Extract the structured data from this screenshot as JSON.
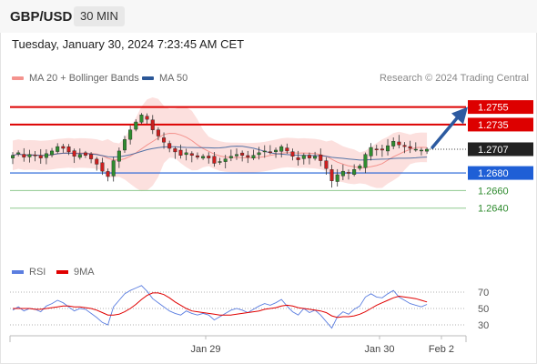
{
  "header": {
    "symbol": "GBP/USD",
    "interval": "30 MIN",
    "datetime": "Tuesday, January 30, 2024 7:23:45 AM CET"
  },
  "legend": {
    "ma20": {
      "label": "MA 20 + Bollinger Bands",
      "color": "#f4938e"
    },
    "ma50": {
      "label": "MA 50",
      "color": "#2b5797"
    },
    "copyright": "Research © 2024 Trading Central"
  },
  "rsi_legend": {
    "rsi": {
      "label": "RSI",
      "color": "#5b7ee0"
    },
    "ma9": {
      "label": "9MA",
      "color": "#e00000"
    }
  },
  "chart_data": [
    {
      "type": "candlestick",
      "price_range": [
        1.2618,
        1.2767
      ],
      "x_ticks": [
        "Jan 29",
        "Jan 30",
        "Feb 2"
      ],
      "current_price": {
        "label": "1.2707",
        "value": 1.2707
      },
      "levels": [
        {
          "label": "1.2755",
          "value": 1.2755,
          "kind": "resistance",
          "color": "#dd0000"
        },
        {
          "label": "1.2735",
          "value": 1.2735,
          "kind": "resistance",
          "color": "#dd0000"
        },
        {
          "label": "1.2680",
          "value": 1.268,
          "kind": "pivot",
          "color": "#1f5fd6"
        },
        {
          "label": "1.2660",
          "value": 1.266,
          "kind": "support",
          "color": "#8fca8f"
        },
        {
          "label": "1.2640",
          "value": 1.264,
          "kind": "support",
          "color": "#8fca8f"
        }
      ],
      "close_series": [
        1.27,
        1.2703,
        1.2698,
        1.2701,
        1.27,
        1.2697,
        1.2702,
        1.2705,
        1.271,
        1.2708,
        1.2704,
        1.2699,
        1.2701,
        1.27,
        1.2696,
        1.269,
        1.2682,
        1.2676,
        1.2694,
        1.2705,
        1.2718,
        1.2729,
        1.2738,
        1.2746,
        1.2741,
        1.2729,
        1.2722,
        1.2715,
        1.2708,
        1.2704,
        1.27,
        1.2703,
        1.27,
        1.2698,
        1.2699,
        1.2697,
        1.2691,
        1.2693,
        1.2696,
        1.2699,
        1.2701,
        1.27,
        1.2698,
        1.27,
        1.2703,
        1.2705,
        1.2704,
        1.2706,
        1.271,
        1.2705,
        1.2699,
        1.2695,
        1.27,
        1.2697,
        1.2699,
        1.2694,
        1.2685,
        1.2671,
        1.2678,
        1.2682,
        1.268,
        1.2684,
        1.2688,
        1.2701,
        1.2709,
        1.2707,
        1.2706,
        1.2711,
        1.2716,
        1.2712,
        1.271,
        1.2708,
        1.2707,
        1.2706,
        1.2707
      ]
    },
    {
      "type": "line",
      "title": "RSI",
      "y_ticks": [
        70,
        50,
        30
      ],
      "series": [
        {
          "name": "RSI",
          "values": [
            48,
            52,
            47,
            50,
            49,
            46,
            53,
            56,
            60,
            57,
            52,
            47,
            50,
            49,
            44,
            39,
            33,
            30,
            52,
            60,
            68,
            72,
            75,
            78,
            71,
            62,
            57,
            52,
            47,
            44,
            42,
            47,
            44,
            42,
            44,
            42,
            36,
            40,
            44,
            48,
            50,
            48,
            45,
            49,
            53,
            56,
            54,
            57,
            61,
            53,
            46,
            42,
            50,
            45,
            48,
            42,
            34,
            26,
            40,
            46,
            43,
            49,
            53,
            64,
            68,
            64,
            63,
            68,
            72,
            64,
            60,
            56,
            54,
            52,
            55
          ]
        },
        {
          "name": "9MA",
          "values": [
            50,
            50,
            50,
            50,
            49,
            49,
            50,
            51,
            52,
            53,
            53,
            52,
            52,
            51,
            50,
            48,
            45,
            42,
            42,
            43,
            46,
            50,
            55,
            61,
            66,
            69,
            69,
            67,
            63,
            58,
            54,
            50,
            47,
            46,
            45,
            44,
            43,
            42,
            42,
            42,
            43,
            44,
            45,
            46,
            47,
            49,
            50,
            51,
            53,
            54,
            53,
            51,
            50,
            49,
            48,
            47,
            45,
            41,
            39,
            40,
            40,
            41,
            43,
            46,
            50,
            54,
            57,
            60,
            63,
            65,
            64,
            63,
            62,
            60,
            58
          ]
        }
      ]
    }
  ]
}
